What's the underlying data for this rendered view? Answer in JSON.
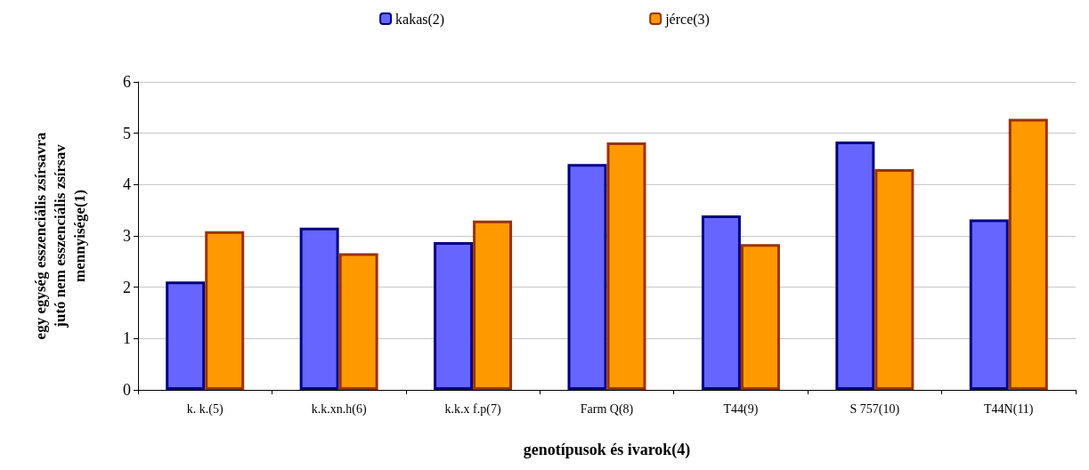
{
  "chart_data": {
    "type": "bar",
    "categories": [
      "k. k.(5)",
      "k.k.xn.h(6)",
      "k.k.x f.p(7)",
      "Farm Q(8)",
      "T44(9)",
      "S 757(10)",
      "T44N(11)"
    ],
    "series": [
      {
        "name": "kakas(2)",
        "color": "#6666ff",
        "values": [
          2.11,
          3.16,
          2.88,
          4.4,
          3.4,
          4.84,
          3.32
        ]
      },
      {
        "name": "jérce(3)",
        "color": "#ff9900",
        "values": [
          3.09,
          2.66,
          3.3,
          4.82,
          2.84,
          4.3,
          5.28
        ]
      }
    ],
    "xlabel": "genotípusok és ivarok(4)",
    "ylabel": "egy egység esszenciális zsírsavra\njutó nem esszenciális zsírsav\nmennyisége(1)",
    "ylim": [
      0,
      6
    ],
    "yticks": [
      0,
      1,
      2,
      3,
      4,
      5,
      6
    ],
    "grid": "y",
    "legend": "top"
  }
}
